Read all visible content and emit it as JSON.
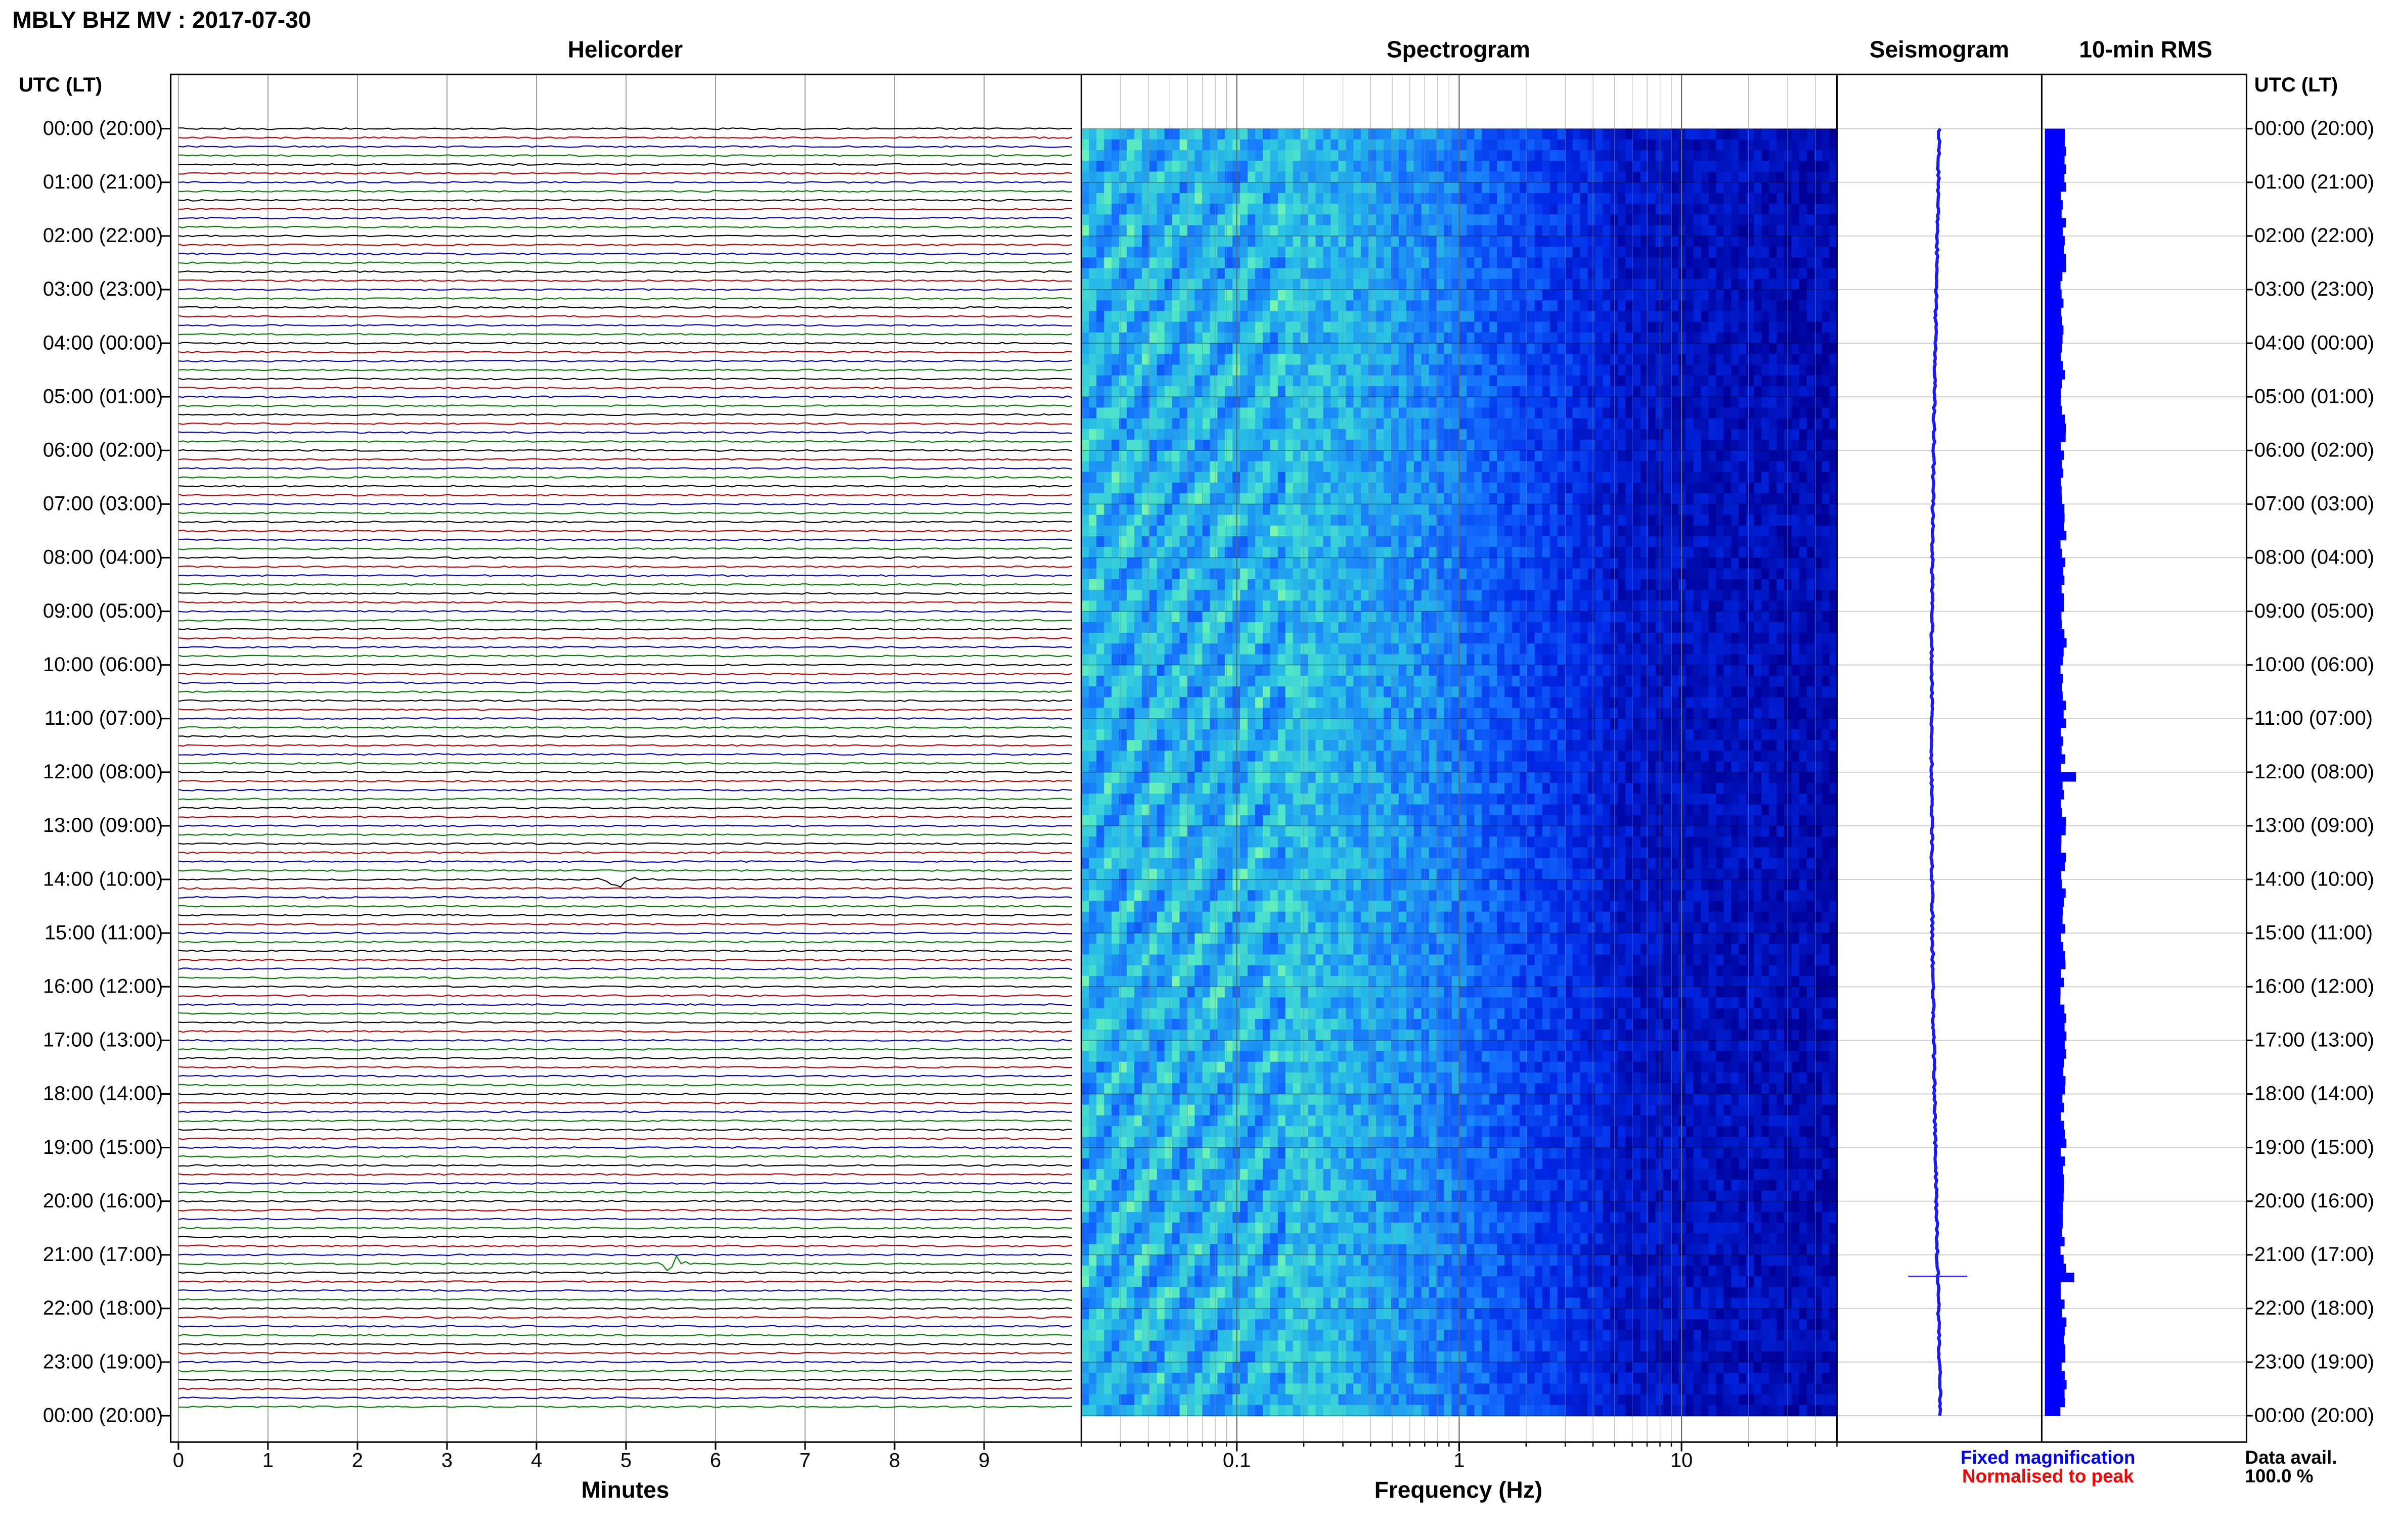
{
  "chart_data": {
    "type": "heatmap",
    "title": "MBLY BHZ MV : 2017-07-30",
    "panels": {
      "helicorder": "Helicorder",
      "spectrogram": "Spectrogram",
      "seismogram": "Seismogram",
      "rms": "10-min RMS"
    },
    "time_axis_label": "UTC (LT)",
    "time_labels": [
      "00:00 (20:00)",
      "01:00 (21:00)",
      "02:00 (22:00)",
      "03:00 (23:00)",
      "04:00 (00:00)",
      "05:00 (01:00)",
      "06:00 (02:00)",
      "07:00 (03:00)",
      "08:00 (04:00)",
      "09:00 (05:00)",
      "10:00 (06:00)",
      "11:00 (07:00)",
      "12:00 (08:00)",
      "13:00 (09:00)",
      "14:00 (10:00)",
      "15:00 (11:00)",
      "16:00 (12:00)",
      "17:00 (13:00)",
      "18:00 (14:00)",
      "19:00 (15:00)",
      "20:00 (16:00)",
      "21:00 (17:00)",
      "22:00 (18:00)",
      "23:00 (19:00)",
      "00:00 (20:00)"
    ],
    "helicorder": {
      "xlabel": "Minutes",
      "xticks": [
        "0",
        "1",
        "2",
        "3",
        "4",
        "5",
        "6",
        "7",
        "8",
        "9"
      ],
      "xlim": [
        0,
        10
      ],
      "trace_colors": [
        "#000000",
        "#c00000",
        "#0000c0",
        "#008000"
      ],
      "events": [
        {
          "hour": 14.0,
          "minute": 4.9
        },
        {
          "hour": 21.2,
          "minute": 5.5
        }
      ]
    },
    "spectrogram": {
      "xlabel": "Frequency (Hz)",
      "xscale": "log",
      "xlim": [
        0.02,
        50
      ],
      "xticks": [
        "0.1",
        "1",
        "10"
      ]
    },
    "legend": {
      "fixed": "Fixed magnification",
      "normalised": "Normalised to peak",
      "fixed_color": "#0000ff",
      "normalised_color": "#ff0000"
    },
    "data_avail_label": "Data avail.",
    "data_avail_value": "100.0 %"
  }
}
